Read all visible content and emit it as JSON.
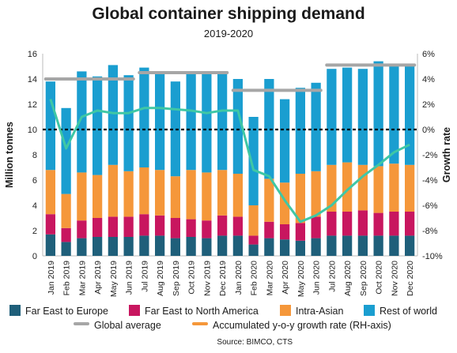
{
  "chart_data": {
    "type": "bar",
    "stacked": true,
    "title": "Global container shipping demand",
    "subtitle": "2019-2020",
    "ylabel": "Million tonnes",
    "y2label": "Growth rate",
    "ylim": [
      0,
      16
    ],
    "yticks": [
      "0",
      "2",
      "4",
      "6",
      "8",
      "10",
      "12",
      "14",
      "16"
    ],
    "y2lim": [
      -10,
      6
    ],
    "y2ticks": [
      "-10%",
      "-8%",
      "-6%",
      "-4%",
      "-2%",
      "0%",
      "2%",
      "4%",
      "6%"
    ],
    "categories": [
      "Jan 2019",
      "Feb 2019",
      "Mar 2019",
      "Apr 2019",
      "May 2019",
      "Jun 2019",
      "Jul 2019",
      "Aug 2019",
      "Sep 2019",
      "Oct 2019",
      "Nov 2019",
      "Dec 2019",
      "Jan 2020",
      "Feb 2020",
      "Mar 2020",
      "Apr 2020",
      "May 2020",
      "Jun 2020",
      "Jul 2020",
      "Aug 2020",
      "Sep 2020",
      "Oct 2020",
      "Nov 2020",
      "Dec 2020"
    ],
    "series": [
      {
        "name": "Far East to Europe",
        "color": "#1f5f7a",
        "values": [
          1.7,
          1.1,
          1.4,
          1.5,
          1.5,
          1.5,
          1.6,
          1.6,
          1.4,
          1.5,
          1.4,
          1.6,
          1.6,
          0.9,
          1.4,
          1.3,
          1.2,
          1.4,
          1.6,
          1.6,
          1.6,
          1.6,
          1.6,
          1.6
        ]
      },
      {
        "name": "Far East to North America",
        "color": "#c8165f",
        "values": [
          1.6,
          1.1,
          1.4,
          1.5,
          1.6,
          1.6,
          1.7,
          1.6,
          1.6,
          1.4,
          1.4,
          1.6,
          1.5,
          0.7,
          1.3,
          1.2,
          1.4,
          1.7,
          1.9,
          1.9,
          2.0,
          1.8,
          1.9,
          1.9
        ]
      },
      {
        "name": "Intra-Asian",
        "color": "#f5973a",
        "values": [
          3.5,
          2.7,
          3.8,
          3.4,
          4.1,
          3.6,
          3.7,
          3.6,
          3.3,
          3.9,
          3.8,
          3.6,
          3.4,
          2.4,
          3.4,
          3.3,
          3.9,
          3.6,
          3.7,
          3.9,
          3.6,
          3.7,
          3.8,
          3.7
        ]
      },
      {
        "name": "Rest of world",
        "color": "#1a9ed0",
        "values": [
          7.0,
          6.8,
          8.0,
          7.8,
          7.9,
          7.6,
          7.9,
          7.8,
          7.5,
          7.7,
          7.8,
          7.8,
          7.5,
          7.0,
          7.9,
          6.6,
          6.8,
          7.0,
          7.6,
          7.5,
          7.6,
          8.3,
          7.9,
          7.8
        ]
      }
    ],
    "global_average": {
      "name": "Global average",
      "color": "#a6a6a6",
      "segments": [
        {
          "from": 0,
          "to": 5,
          "value": 14.0
        },
        {
          "from": 6,
          "to": 11,
          "value": 14.5
        },
        {
          "from": 12,
          "to": 17,
          "value": 13.1
        },
        {
          "from": 18,
          "to": 23,
          "value": 15.1
        }
      ]
    },
    "growth_rate": {
      "name": "Accumulated y-o-y growth rate (RH-axis)",
      "color": "#3fc7a5",
      "values": [
        2.4,
        -1.5,
        1.0,
        1.5,
        1.3,
        1.3,
        1.7,
        1.7,
        1.6,
        1.5,
        1.3,
        1.5,
        1.5,
        -3.2,
        -3.7,
        -5.6,
        -7.3,
        -6.8,
        -6.0,
        -4.8,
        -3.7,
        -2.8,
        -1.8,
        -1.2
      ]
    },
    "zero_line_value": 10,
    "legend": "bottom"
  },
  "source": "Source: BIMCO, CTS",
  "colors": {
    "tick_dash": "#000000"
  }
}
